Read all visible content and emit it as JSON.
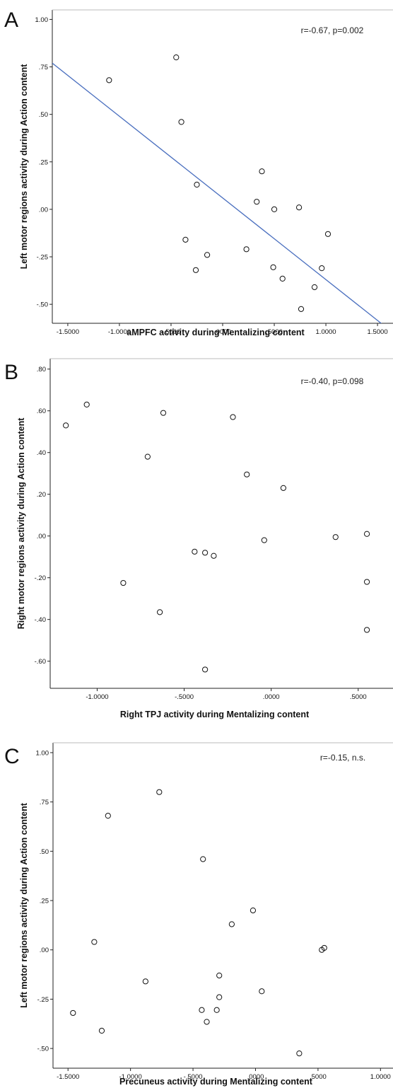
{
  "chart_data": [
    {
      "type": "scatter",
      "panel_label": "A",
      "xlabel": "aMPFC activity during Mentalizing content",
      "ylabel": "Left motor regions activity during Action content",
      "annotation": "r=-0.67, p=0.002",
      "xlim": [
        -1.65,
        1.65
      ],
      "ylim": [
        -0.6,
        1.05
      ],
      "xticks": [
        -1.5,
        -1.0,
        -0.5,
        0.0,
        0.5,
        1.0,
        1.5
      ],
      "xtick_labels": [
        "-1.5000",
        "-1.0000",
        "-.5000",
        ".0000",
        ".5000",
        "1.0000",
        "1.5000"
      ],
      "yticks": [
        -0.5,
        -0.25,
        0.0,
        0.25,
        0.5,
        0.75,
        1.0
      ],
      "ytick_labels": [
        "-.50",
        "-.25",
        ".00",
        ".25",
        ".50",
        ".75",
        "1.00"
      ],
      "fit_line": {
        "slope": -0.43,
        "intercept": 0.06,
        "color": "#4a6fbf"
      },
      "grid": false,
      "points": [
        {
          "x": -1.1,
          "y": 0.68
        },
        {
          "x": -0.45,
          "y": 0.8
        },
        {
          "x": -0.4,
          "y": 0.46
        },
        {
          "x": -0.25,
          "y": 0.13
        },
        {
          "x": -0.36,
          "y": -0.16
        },
        {
          "x": -0.15,
          "y": -0.24
        },
        {
          "x": -0.26,
          "y": -0.32
        },
        {
          "x": 0.23,
          "y": -0.21
        },
        {
          "x": 0.33,
          "y": 0.04
        },
        {
          "x": 0.38,
          "y": 0.2
        },
        {
          "x": 0.5,
          "y": 0.0
        },
        {
          "x": 0.49,
          "y": -0.305
        },
        {
          "x": 0.58,
          "y": -0.365
        },
        {
          "x": 0.74,
          "y": 0.01
        },
        {
          "x": 0.76,
          "y": -0.525
        },
        {
          "x": 0.89,
          "y": -0.41
        },
        {
          "x": 0.96,
          "y": -0.31
        },
        {
          "x": 1.02,
          "y": -0.13
        }
      ]
    },
    {
      "type": "scatter",
      "panel_label": "B",
      "xlabel": "Right TPJ activity during Mentalizing content",
      "ylabel": "Right motor regions activity during Action content",
      "annotation": "r=-0.40, p=0.098",
      "xlim": [
        -1.27,
        0.7
      ],
      "ylim": [
        -0.73,
        0.85
      ],
      "xticks": [
        -1.0,
        -0.5,
        0.0,
        0.5
      ],
      "xtick_labels": [
        "-1.0000",
        "-.5000",
        ".0000",
        ".5000"
      ],
      "yticks": [
        -0.6,
        -0.4,
        -0.2,
        0.0,
        0.2,
        0.4,
        0.6,
        0.8
      ],
      "ytick_labels": [
        "-.60",
        "-.40",
        "-.20",
        ".00",
        ".20",
        ".40",
        ".60",
        ".80"
      ],
      "grid": false,
      "points": [
        {
          "x": -1.18,
          "y": 0.53
        },
        {
          "x": -1.06,
          "y": 0.63
        },
        {
          "x": -0.71,
          "y": 0.38
        },
        {
          "x": -0.62,
          "y": 0.59
        },
        {
          "x": -0.22,
          "y": 0.57
        },
        {
          "x": -0.14,
          "y": 0.295
        },
        {
          "x": 0.07,
          "y": 0.23
        },
        {
          "x": -0.85,
          "y": -0.225
        },
        {
          "x": -0.64,
          "y": -0.365
        },
        {
          "x": -0.44,
          "y": -0.075
        },
        {
          "x": -0.38,
          "y": -0.08
        },
        {
          "x": -0.33,
          "y": -0.095
        },
        {
          "x": -0.04,
          "y": -0.02
        },
        {
          "x": -0.38,
          "y": -0.64
        },
        {
          "x": 0.37,
          "y": -0.005
        },
        {
          "x": 0.55,
          "y": 0.01
        },
        {
          "x": 0.55,
          "y": -0.22
        },
        {
          "x": 0.55,
          "y": -0.45
        }
      ]
    },
    {
      "type": "scatter",
      "panel_label": "C",
      "xlabel": "Precuneus activity during Mentalizing content",
      "ylabel": "Left motor regions activity during Action content",
      "annotation": "r=-0.15, n.s.",
      "xlim": [
        -1.62,
        1.1
      ],
      "ylim": [
        -0.6,
        1.05
      ],
      "xticks": [
        -1.5,
        -1.0,
        -0.5,
        0.0,
        0.5,
        1.0
      ],
      "xtick_labels": [
        "-1.5000",
        "-1.0000",
        "-.5000",
        ".0000",
        ".5000",
        "1.0000"
      ],
      "yticks": [
        -0.5,
        -0.25,
        0.0,
        0.25,
        0.5,
        0.75,
        1.0
      ],
      "ytick_labels": [
        "-.50",
        "-.25",
        ".00",
        ".25",
        ".50",
        ".75",
        "1.00"
      ],
      "grid": false,
      "points": [
        {
          "x": -0.77,
          "y": 0.8
        },
        {
          "x": -1.18,
          "y": 0.68
        },
        {
          "x": -0.42,
          "y": 0.46
        },
        {
          "x": -0.02,
          "y": 0.2
        },
        {
          "x": -0.19,
          "y": 0.13
        },
        {
          "x": -1.29,
          "y": 0.04
        },
        {
          "x": 0.53,
          "y": 0.0
        },
        {
          "x": 0.55,
          "y": 0.01
        },
        {
          "x": -0.88,
          "y": -0.16
        },
        {
          "x": -0.29,
          "y": -0.13
        },
        {
          "x": 0.05,
          "y": -0.21
        },
        {
          "x": -0.29,
          "y": -0.24
        },
        {
          "x": -0.43,
          "y": -0.305
        },
        {
          "x": -0.31,
          "y": -0.305
        },
        {
          "x": -0.39,
          "y": -0.365
        },
        {
          "x": -1.46,
          "y": -0.32
        },
        {
          "x": -1.23,
          "y": -0.41
        },
        {
          "x": 0.35,
          "y": -0.525
        }
      ]
    }
  ]
}
